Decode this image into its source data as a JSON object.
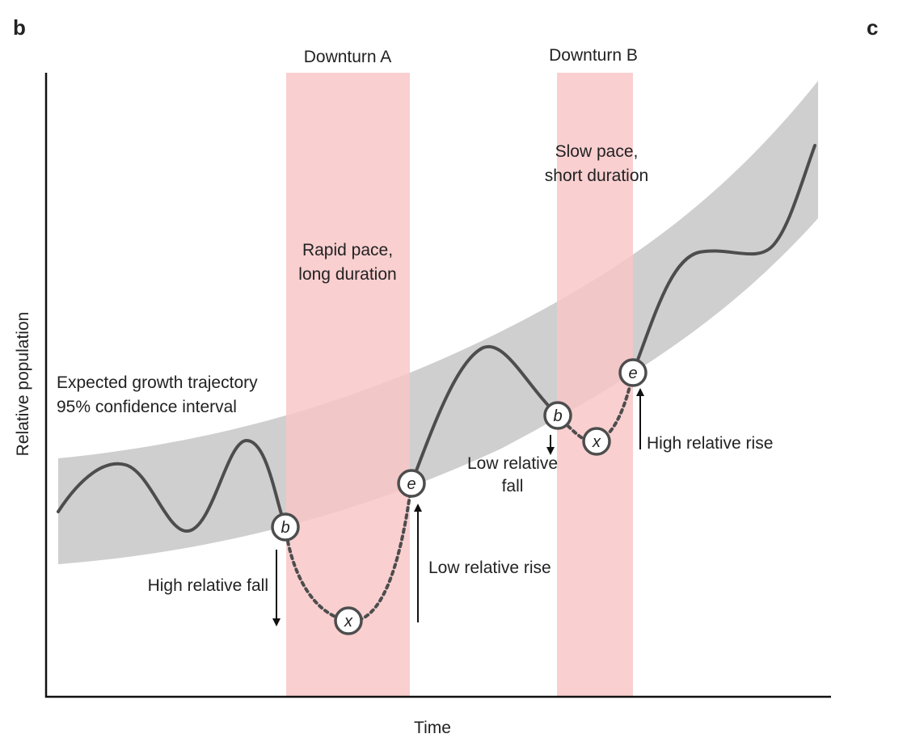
{
  "figure": {
    "panel_b": "b",
    "panel_c": "c",
    "x_axis_label": "Time",
    "y_axis_label": "Relative population",
    "band_label_line1": "Expected growth trajectory",
    "band_label_line2": "95% confidence interval",
    "colors": {
      "band": "#cfcfcf",
      "downturn": "#f8c4c6",
      "line": "#4d4d4d",
      "axis": "#111111"
    }
  },
  "downturn_a": {
    "title": "Downturn A",
    "pace_line1": "Rapid pace,",
    "pace_line2": "long duration",
    "fall_label": "High relative fall",
    "rise_label": "Low relative rise",
    "node_begin": "b",
    "node_trough": "x",
    "node_end": "e"
  },
  "downturn_b": {
    "title": "Downturn B",
    "pace_line1": "Slow pace,",
    "pace_line2": "short duration",
    "fall_label_line1": "Low relative",
    "fall_label_line2": "fall",
    "rise_label": "High relative rise",
    "node_begin": "b",
    "node_trough": "x",
    "node_end": "e"
  }
}
